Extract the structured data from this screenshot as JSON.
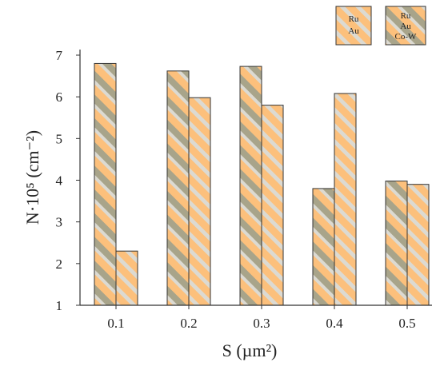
{
  "chart_data": {
    "type": "bar",
    "categories": [
      "0.1",
      "0.2",
      "0.3",
      "0.4",
      "0.5"
    ],
    "series": [
      {
        "name": "Ru Au Co-W",
        "values": [
          6.8,
          6.62,
          6.73,
          3.8,
          3.98
        ]
      },
      {
        "name": "Ru Au",
        "values": [
          2.3,
          5.98,
          5.8,
          6.08,
          3.9
        ]
      }
    ],
    "xlabel": "S (µm²)",
    "ylabel": "N·10⁵ (cm⁻²)",
    "ylim": [
      1,
      7
    ],
    "yticks": [
      "1",
      "2",
      "3",
      "4",
      "5",
      "6",
      "7"
    ],
    "grid": false,
    "legend_position": "top-right",
    "legend": [
      {
        "lines": [
          "Ru",
          "Au"
        ]
      },
      {
        "lines": [
          "Ru",
          "Au",
          "Co-W"
        ]
      }
    ],
    "colors": {
      "orange": "#fcc07c",
      "olive": "#a8a48a",
      "silver": "#dcdad2",
      "stroke": "#333333"
    }
  }
}
